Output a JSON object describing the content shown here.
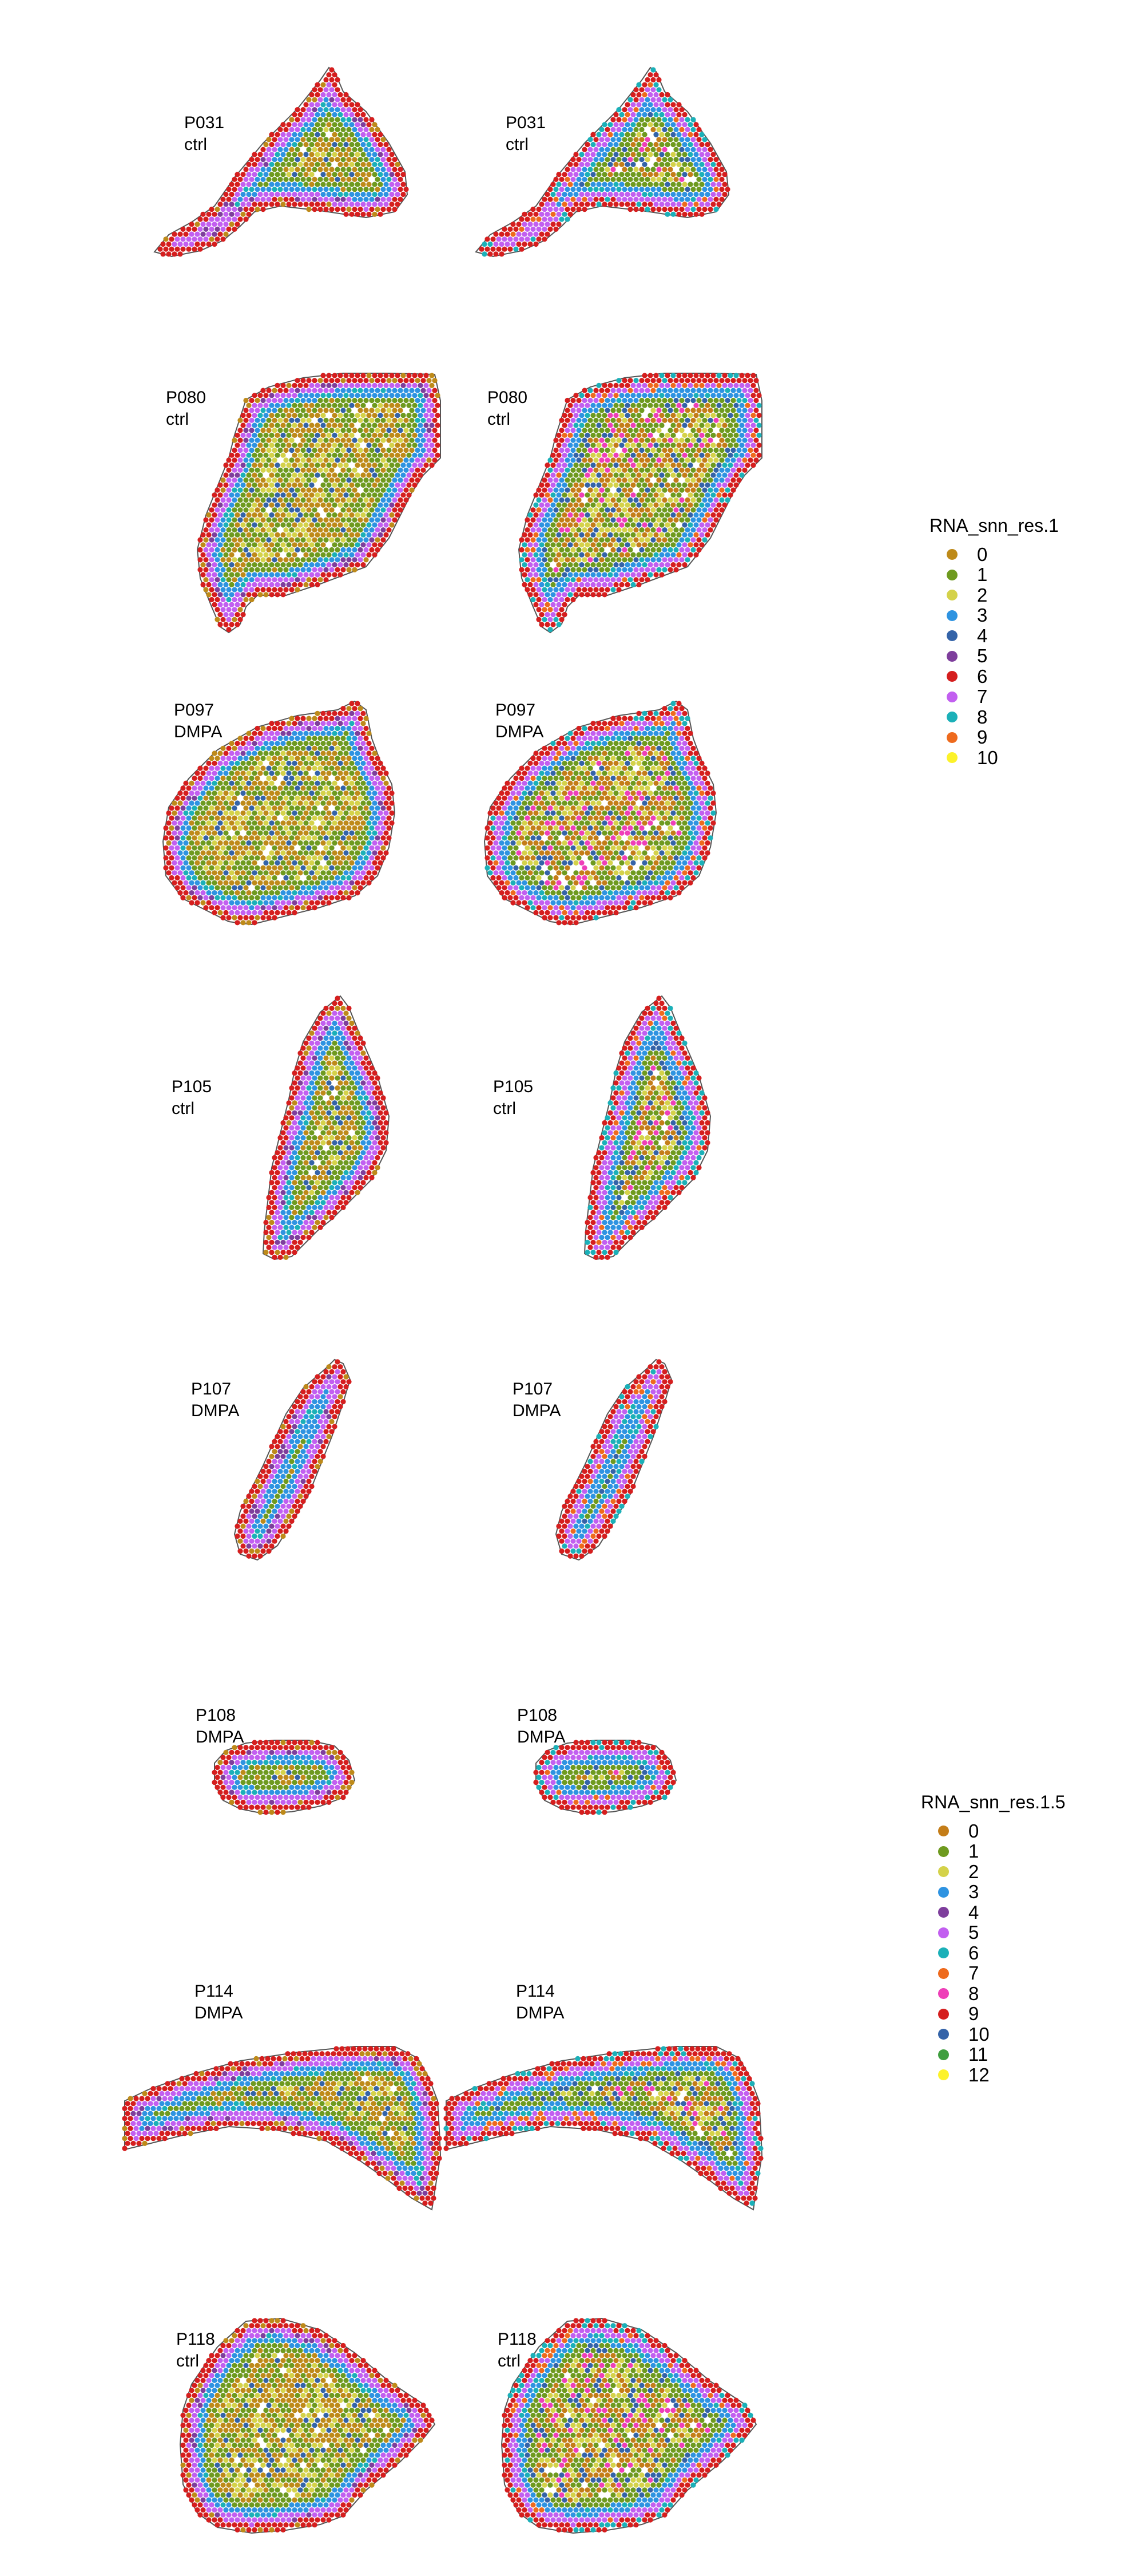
{
  "chart_data": {
    "type": "scatter",
    "description_kind": "spatial transcriptomics spot plots",
    "columns": [
      "RNA_snn_res.1",
      "RNA_snn_res.1.5"
    ],
    "samples": [
      {
        "id": "P031",
        "group": "ctrl"
      },
      {
        "id": "P080",
        "group": "ctrl"
      },
      {
        "id": "P097",
        "group": "DMPA"
      },
      {
        "id": "P105",
        "group": "ctrl"
      },
      {
        "id": "P107",
        "group": "DMPA"
      },
      {
        "id": "P108",
        "group": "DMPA"
      },
      {
        "id": "P114",
        "group": "DMPA"
      },
      {
        "id": "P118",
        "group": "ctrl"
      }
    ],
    "legends": [
      {
        "title": "RNA_snn_res.1",
        "labels": [
          "0",
          "1",
          "2",
          "3",
          "4",
          "5",
          "6",
          "7",
          "8",
          "9",
          "10"
        ],
        "colors": [
          "#BE8A19",
          "#6E9A1F",
          "#D4D24A",
          "#2E93E1",
          "#3463A8",
          "#7E3E9C",
          "#D51E1E",
          "#C25FF0",
          "#1BB0B8",
          "#EE6A1D",
          "#FCF22A"
        ]
      },
      {
        "title": "RNA_snn_res.1.5",
        "labels": [
          "0",
          "1",
          "2",
          "3",
          "4",
          "5",
          "6",
          "7",
          "8",
          "9",
          "10",
          "11",
          "12"
        ],
        "colors": [
          "#C47D18",
          "#6E9A1F",
          "#D4D24A",
          "#2E93E1",
          "#7E3E9C",
          "#C25FF0",
          "#1BB0B8",
          "#EE6A1D",
          "#EE3FB8",
          "#D51E1E",
          "#3463A8",
          "#3F9E3F",
          "#FCF22A"
        ]
      }
    ]
  }
}
